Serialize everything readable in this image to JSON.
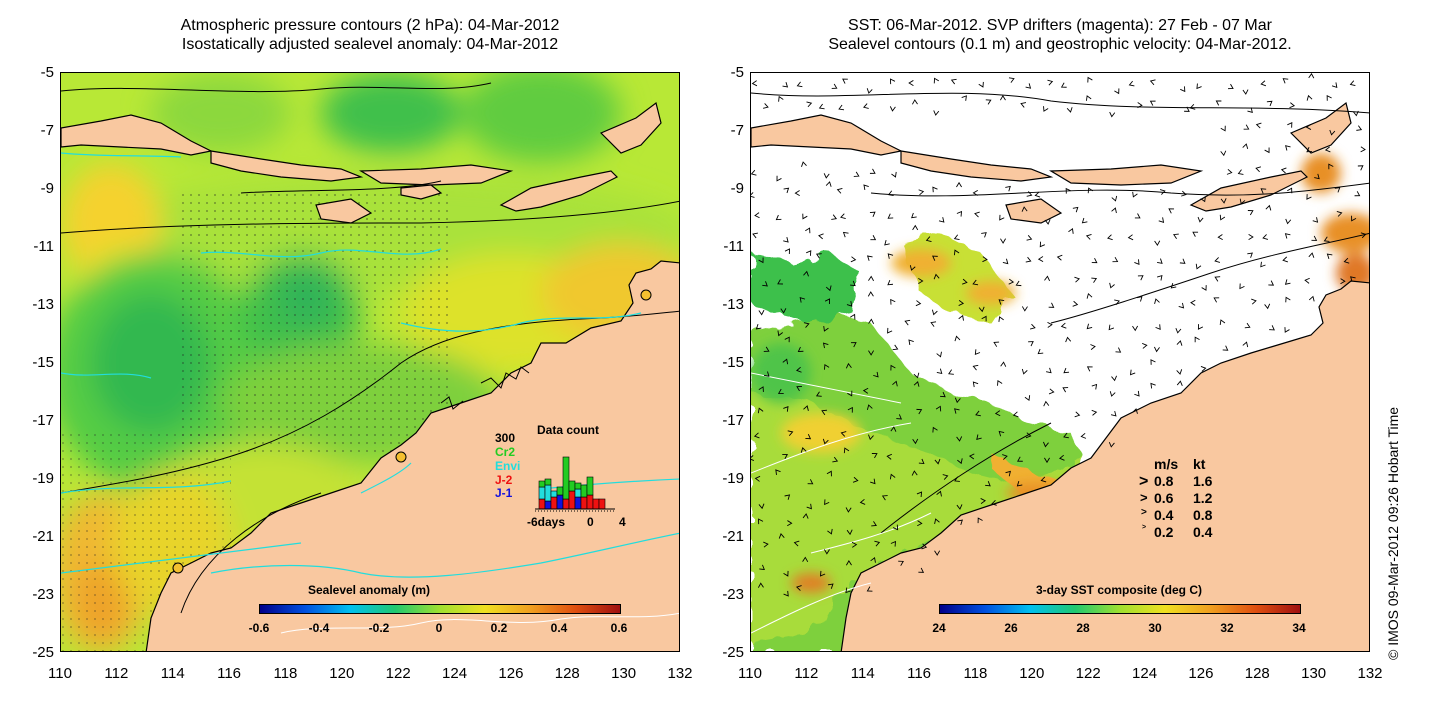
{
  "left_panel": {
    "title_line1": "Atmospheric pressure contours (2 hPa): 04-Mar-2012",
    "title_line2": "Isostatically adjusted sealevel anomaly: 04-Mar-2012",
    "colorbar": {
      "title": "Sealevel anomaly (m)",
      "ticks": [
        "-0.6",
        "-0.4",
        "-0.2",
        "0",
        "0.2",
        "0.4",
        "0.6"
      ]
    },
    "data_count": {
      "title": "Data count",
      "max_label": "300",
      "missions": [
        {
          "name": "Cr2",
          "color": "#22cc22"
        },
        {
          "name": "Envi",
          "color": "#22dddd"
        },
        {
          "name": "J-2",
          "color": "#ee1111"
        },
        {
          "name": "J-1",
          "color": "#1111dd"
        }
      ],
      "xaxis_left": "-6days",
      "xaxis_mid": "0",
      "xaxis_right": "4"
    }
  },
  "right_panel": {
    "title_line1": "SST: 06-Mar-2012. SVP drifters (magenta): 27 Feb - 07 Mar",
    "title_line2": "Sealevel contours (0.1 m) and geostrophic velocity: 04-Mar-2012.",
    "colorbar": {
      "title": "3-day SST composite (deg C)",
      "ticks": [
        "24",
        "26",
        "28",
        "30",
        "32",
        "34"
      ]
    },
    "velocity_legend": {
      "header_ms": "m/s",
      "header_kt": "kt",
      "rows": [
        {
          "ms": "0.8",
          "kt": "1.6"
        },
        {
          "ms": "0.6",
          "kt": "1.2"
        },
        {
          "ms": "0.4",
          "kt": "0.8"
        },
        {
          "ms": "0.2",
          "kt": "0.4"
        }
      ]
    }
  },
  "axes": {
    "y_ticks": [
      "-5",
      "-7",
      "-9",
      "-11",
      "-13",
      "-15",
      "-17",
      "-19",
      "-21",
      "-23",
      "-25"
    ],
    "x_ticks": [
      "110",
      "112",
      "114",
      "116",
      "118",
      "120",
      "122",
      "124",
      "126",
      "128",
      "130",
      "132"
    ]
  },
  "credit": "© IMOS 09-Mar-2012 09:26 Hobart Time",
  "colors": {
    "land": "#f9c8a0",
    "contour_cyan": "#22dddd"
  }
}
